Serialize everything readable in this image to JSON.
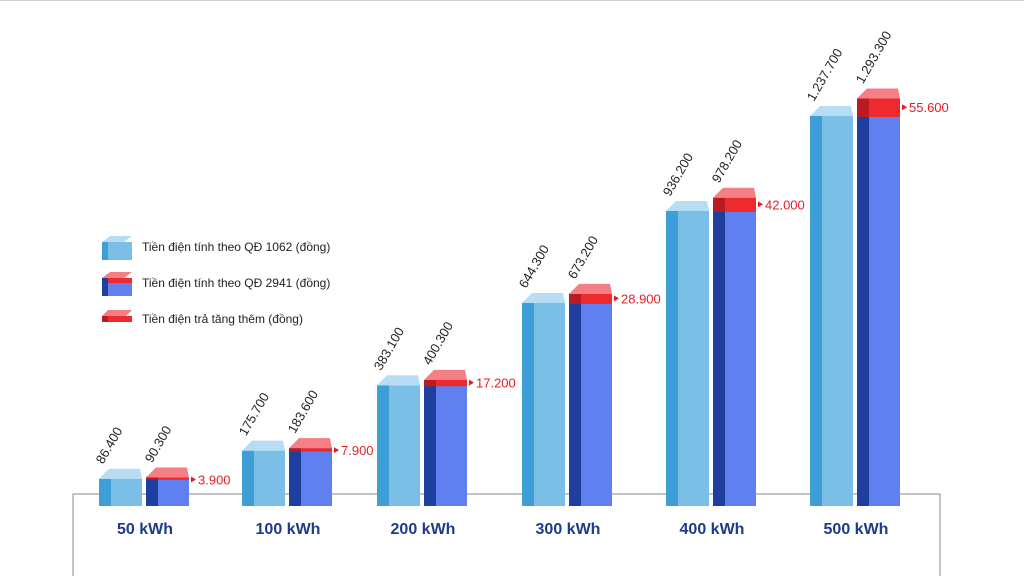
{
  "colors": {
    "light_front": "#7bbfe6",
    "light_side": "#3d9fd6",
    "light_top": "#b6ddf4",
    "blue_front": "#6080f0",
    "blue_side": "#1e3f9e",
    "blue_top": "#8fa6f5",
    "red_front": "#ef2a2f",
    "red_side": "#b81c22",
    "red_top": "#f47f84",
    "increase_text": "#e31e26",
    "category_text": "#1f3a8a",
    "value_text": "#222222"
  },
  "legend": [
    {
      "label": "Tiền điện tính theo QĐ 1062 (đồng)",
      "icon": "light-blue-cube-icon"
    },
    {
      "label": "Tiền điện tính theo QĐ 2941 (đồng)",
      "icon": "blue-red-cube-icon"
    },
    {
      "label": "Tiền điện trả tăng thêm (đồng)",
      "icon": "red-slab-icon"
    }
  ],
  "chart_data": {
    "type": "bar",
    "categories": [
      "50 kWh",
      "100 kWh",
      "200 kWh",
      "300 kWh",
      "400 kWh",
      "500 kWh"
    ],
    "series": [
      {
        "name": "Tiền điện tính theo QĐ 1062 (đồng)",
        "values": [
          86400,
          175700,
          383100,
          644300,
          936200,
          1237700
        ],
        "labels": [
          "86.400",
          "175.700",
          "383.100",
          "644.300",
          "936.200",
          "1.237.700"
        ]
      },
      {
        "name": "Tiền điện tính theo QĐ 2941 (đồng)",
        "values": [
          90300,
          183600,
          400300,
          673200,
          978200,
          1293300
        ],
        "labels": [
          "90.300",
          "183.600",
          "400.300",
          "673.200",
          "978.200",
          "1.293.300"
        ]
      },
      {
        "name": "Tiền điện trả tăng thêm (đồng)",
        "values": [
          3900,
          7900,
          17200,
          28900,
          42000,
          55600
        ],
        "labels": [
          "3.900",
          "7.900",
          "17.200",
          "28.900",
          "42.000",
          "55.600"
        ]
      }
    ],
    "legend_position": "left",
    "grid": false
  }
}
